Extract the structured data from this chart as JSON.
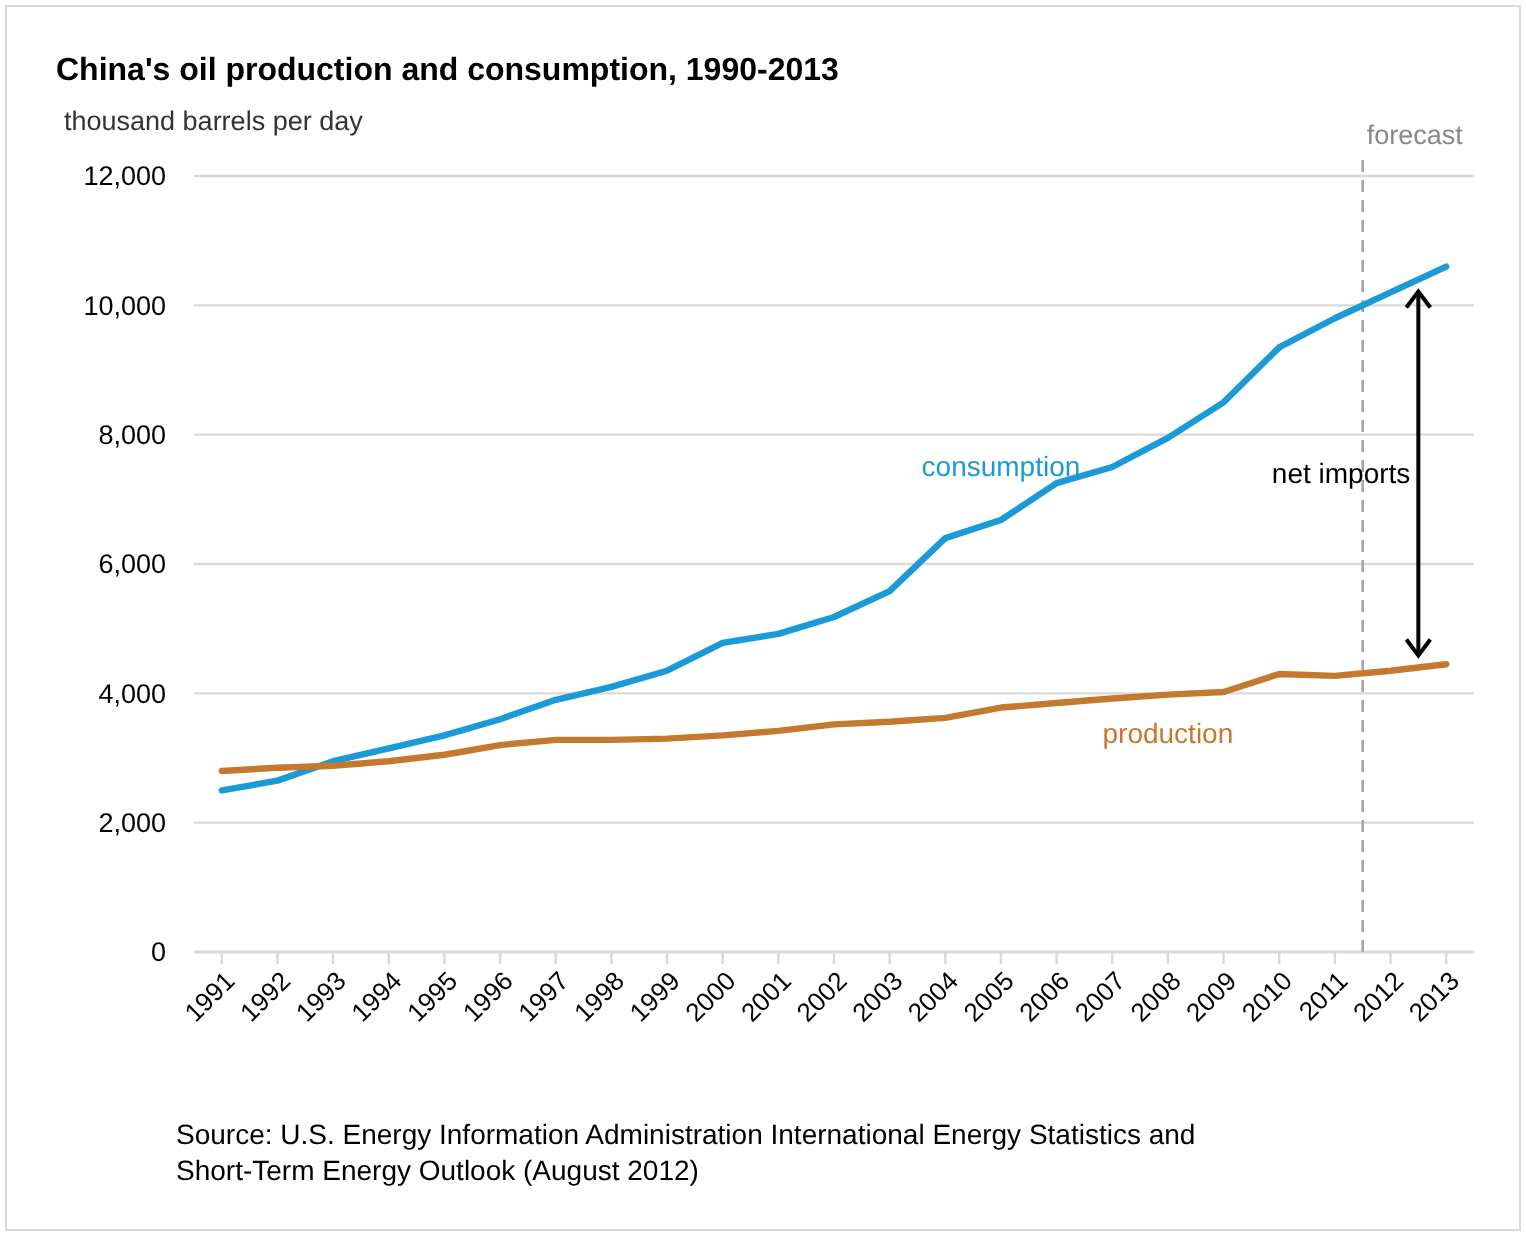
{
  "chart_data": {
    "type": "line",
    "title": "China's oil production and consumption, 1990-2013",
    "ylabel": "thousand barrels per day",
    "x": [
      1991,
      1992,
      1993,
      1994,
      1995,
      1996,
      1997,
      1998,
      1999,
      2000,
      2001,
      2002,
      2003,
      2004,
      2005,
      2006,
      2007,
      2008,
      2009,
      2010,
      2011,
      2012,
      2013
    ],
    "series": [
      {
        "name": "consumption",
        "color": "#1a9ad6",
        "values": [
          2500,
          2650,
          2950,
          3150,
          3350,
          3600,
          3900,
          4100,
          4350,
          4780,
          4920,
          5180,
          5580,
          6400,
          6680,
          7250,
          7500,
          7950,
          8500,
          9350,
          9800,
          10200,
          10600
        ]
      },
      {
        "name": "production",
        "color": "#c5792f",
        "values": [
          2800,
          2850,
          2880,
          2950,
          3050,
          3200,
          3280,
          3280,
          3300,
          3350,
          3420,
          3520,
          3560,
          3620,
          3780,
          3850,
          3920,
          3980,
          4020,
          4300,
          4270,
          4350,
          4450
        ]
      }
    ],
    "xlim": [
      1990.5,
      2013.5
    ],
    "xticks": [
      1991,
      1992,
      1993,
      1994,
      1995,
      1996,
      1997,
      1998,
      1999,
      2000,
      2001,
      2002,
      2003,
      2004,
      2005,
      2006,
      2007,
      2008,
      2009,
      2010,
      2011,
      2012,
      2013
    ],
    "ylim": [
      0,
      12000
    ],
    "yticks": [
      0,
      {
        "value": 2000,
        "label": "2,000"
      },
      {
        "value": 4000,
        "label": "4,000"
      },
      {
        "value": 6000,
        "label": "6,000"
      },
      {
        "value": 8000,
        "label": "8,000"
      },
      {
        "value": 10000,
        "label": "10,000"
      },
      {
        "value": 12000,
        "label": "12,000"
      }
    ],
    "grid": "y",
    "ref_lines": [
      {
        "axis": "x",
        "value": 2011.5,
        "label": "forecast",
        "color": "#a6a6a6",
        "line_style": "dashed"
      }
    ],
    "annotations": [
      "net imports",
      "Source: U.S. Energy Information Administration International Energy Statistics and Short-Term Energy Outlook (August 2012)"
    ]
  }
}
